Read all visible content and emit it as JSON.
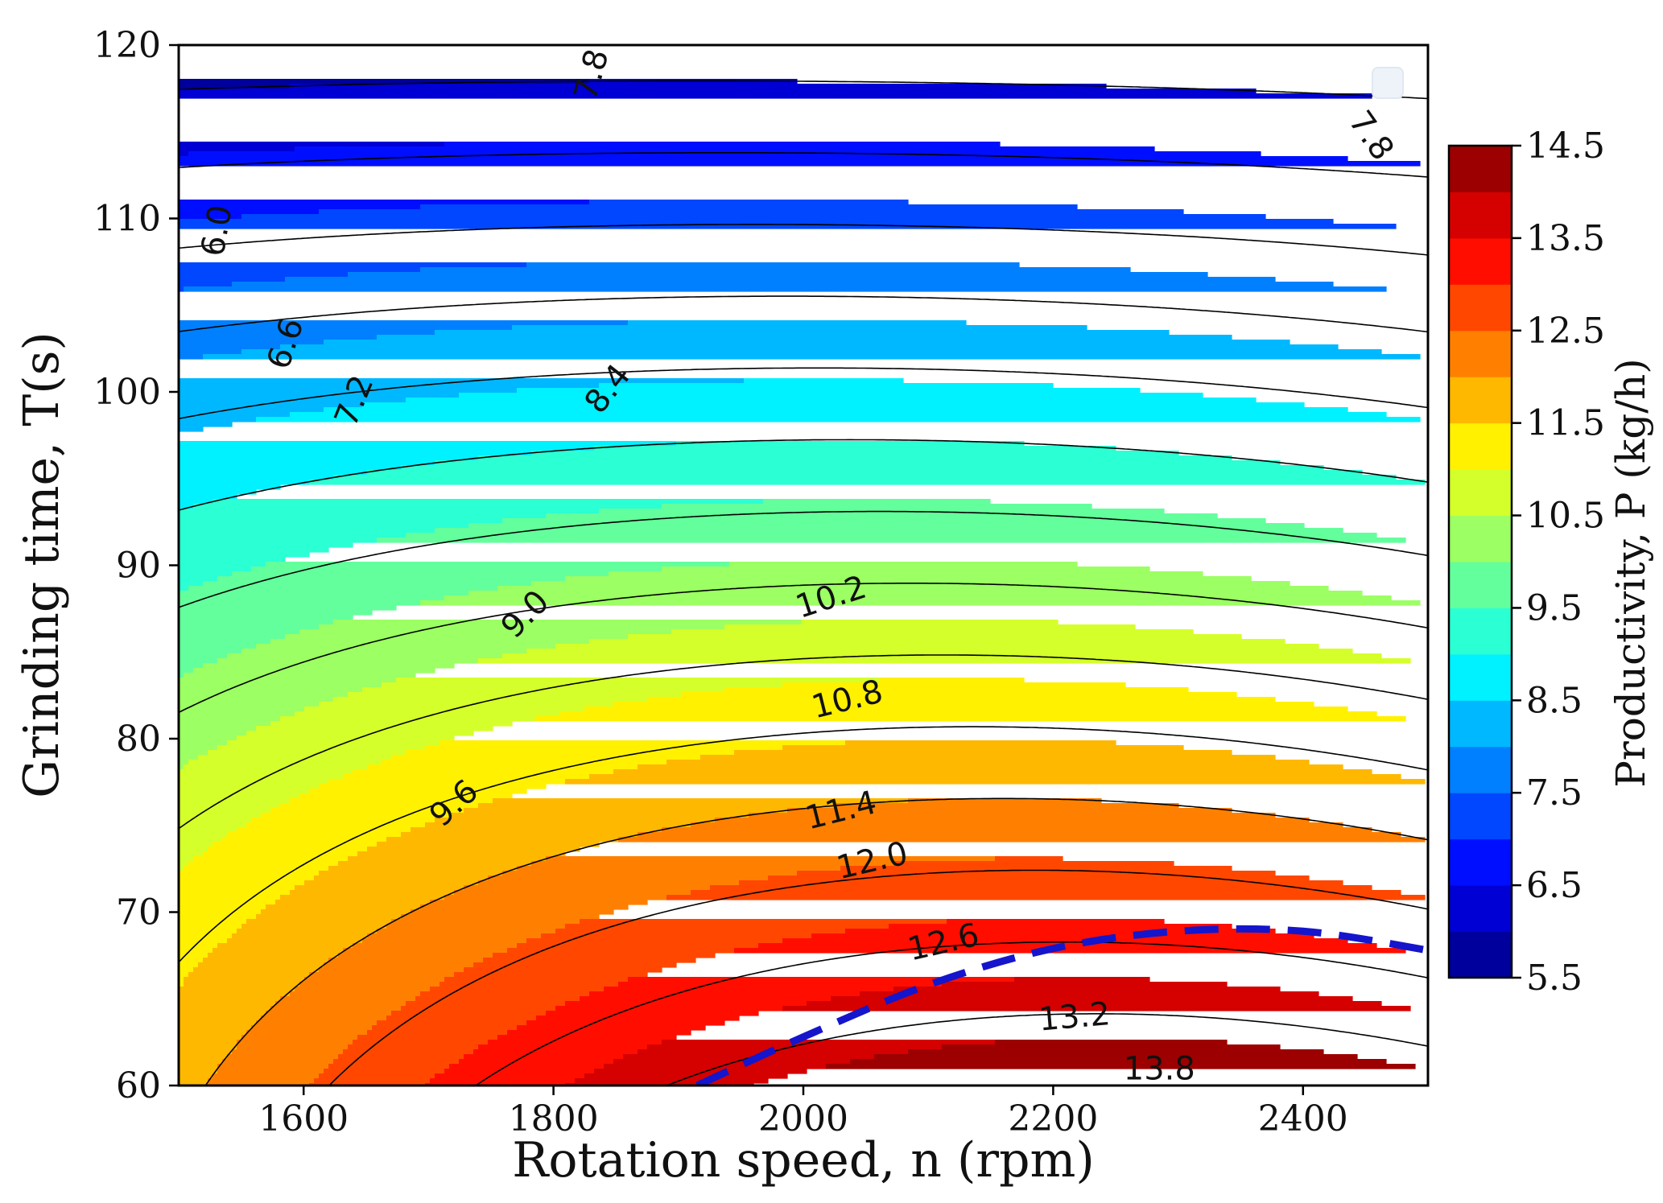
{
  "chart_data": {
    "type": "contour",
    "title": "",
    "xlabel": "Rotation speed, n (rpm)",
    "ylabel": "Grinding time, T(s)",
    "xlim": [
      1500,
      2500
    ],
    "ylim": [
      60,
      120
    ],
    "xticks": [
      1600,
      1800,
      2000,
      2200,
      2400
    ],
    "yticks": [
      60,
      70,
      80,
      90,
      100,
      110,
      120
    ],
    "colorbar": {
      "label": "Productivity, P (kg/h)",
      "range": [
        5.5,
        14.5
      ],
      "ticks": [
        5.5,
        6.5,
        7.5,
        8.5,
        9.5,
        10.5,
        11.5,
        12.5,
        13.5,
        14.5
      ],
      "level_step": 0.5,
      "colormap": "jet"
    },
    "contour_lines": [
      6.0,
      6.6,
      7.2,
      7.8,
      8.4,
      9.0,
      9.6,
      10.2,
      10.8,
      11.4,
      12.0,
      12.6,
      13.2,
      13.8
    ],
    "contour_labels": [
      {
        "text": "6.0",
        "x": 1530,
        "y": 109.3,
        "angle": -80
      },
      {
        "text": "6.6",
        "x": 1585,
        "y": 102.8,
        "angle": -72
      },
      {
        "text": "7.2",
        "x": 1640,
        "y": 99.5,
        "angle": -68
      },
      {
        "text": "7.8",
        "x": 1830,
        "y": 118.3,
        "angle": -75
      },
      {
        "text": "7.8",
        "x": 2455,
        "y": 114.8,
        "angle": 55
      },
      {
        "text": "8.4",
        "x": 1843,
        "y": 100.2,
        "angle": -52
      },
      {
        "text": "9.0",
        "x": 1777,
        "y": 87.2,
        "angle": -45
      },
      {
        "text": "9.6",
        "x": 1720,
        "y": 76.3,
        "angle": -42
      },
      {
        "text": "10.2",
        "x": 2022,
        "y": 88.2,
        "angle": -18
      },
      {
        "text": "10.8",
        "x": 2035,
        "y": 82.3,
        "angle": -14
      },
      {
        "text": "11.4",
        "x": 2030,
        "y": 75.9,
        "angle": -14
      },
      {
        "text": "12.0",
        "x": 2055,
        "y": 73.0,
        "angle": -13
      },
      {
        "text": "12.6",
        "x": 2112,
        "y": 68.3,
        "angle": -13
      },
      {
        "text": "13.2",
        "x": 2217,
        "y": 64.0,
        "angle": -5
      },
      {
        "text": "13.8",
        "x": 2285,
        "y": 61.0,
        "angle": 0
      }
    ],
    "dashed_line": {
      "color": "#1515cc",
      "x": [
        1915,
        2000,
        2100,
        2200,
        2300,
        2400,
        2500
      ],
      "y": [
        60.0,
        62.8,
        65.8,
        67.9,
        68.9,
        68.9,
        67.8
      ]
    },
    "legend": {
      "placement": "top-right",
      "entries": []
    }
  }
}
